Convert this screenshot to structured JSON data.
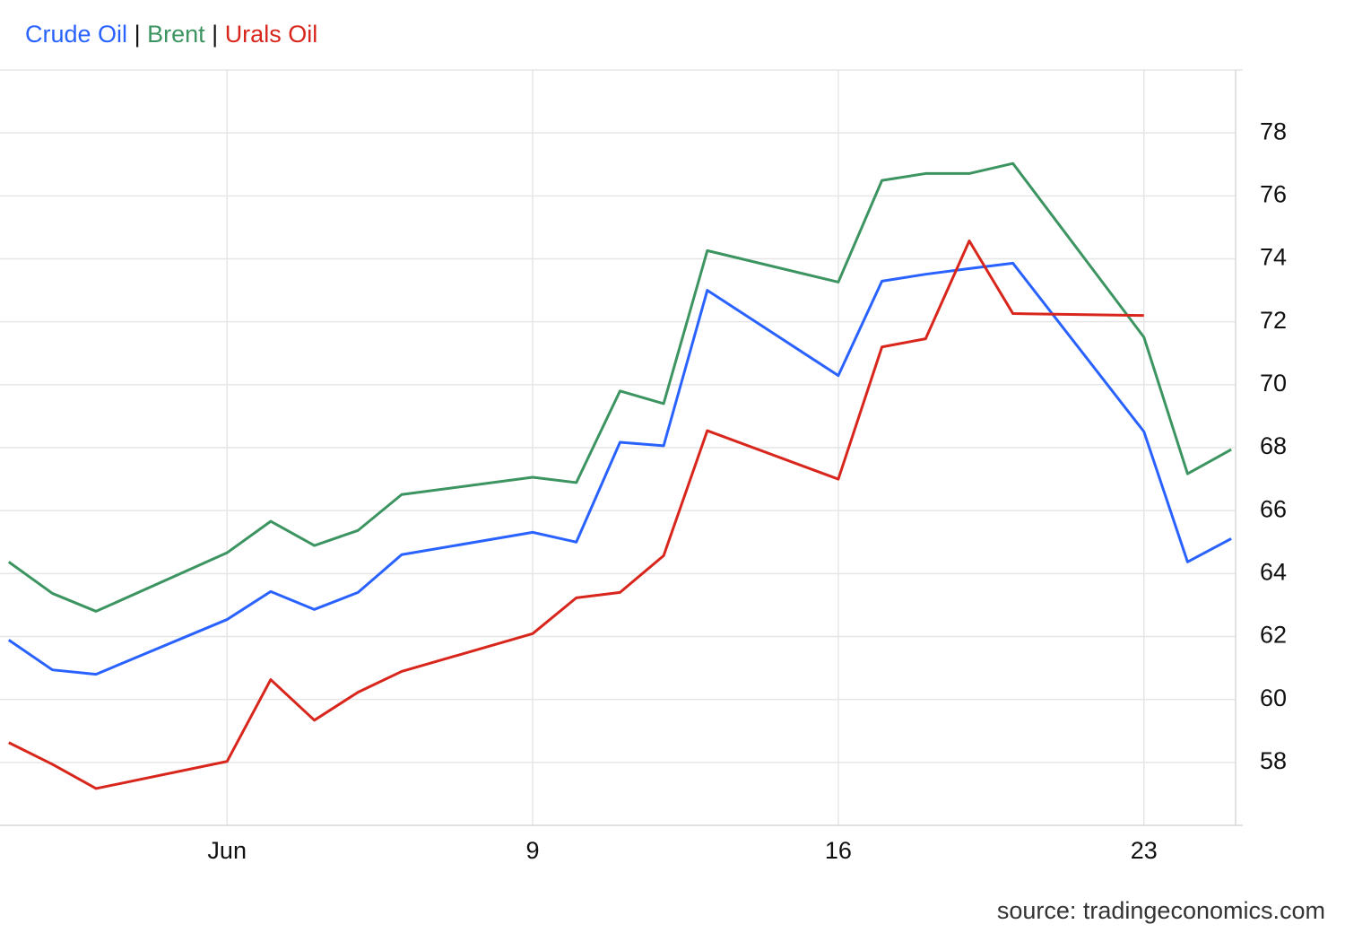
{
  "chart_data": {
    "type": "line",
    "legend_separator": "|",
    "source": "source: tradingeconomics.com",
    "x": [
      -3,
      -2,
      -1,
      2,
      3,
      4,
      5,
      6,
      9,
      10,
      11,
      12,
      13,
      16,
      17,
      18,
      19,
      20,
      23,
      24,
      25
    ],
    "xlim": [
      -3.2,
      25.1
    ],
    "xticks": [
      {
        "value": 2,
        "label": "Jun"
      },
      9,
      16,
      23
    ],
    "ylim": [
      56,
      80
    ],
    "yticks": [
      58,
      60,
      62,
      64,
      66,
      68,
      70,
      72,
      74,
      76,
      78
    ],
    "grid": true,
    "series": [
      {
        "name": "Crude Oil",
        "color": "#2962ff",
        "values": [
          61.89,
          60.94,
          60.8,
          62.54,
          63.43,
          62.86,
          63.4,
          64.6,
          65.31,
          65.0,
          68.17,
          68.06,
          73.0,
          70.29,
          73.29,
          73.51,
          73.69,
          73.86,
          68.51,
          64.37,
          65.11
        ]
      },
      {
        "name": "Brent",
        "color": "#3c9461",
        "values": [
          64.37,
          63.37,
          62.8,
          64.66,
          65.66,
          64.89,
          65.37,
          66.51,
          67.06,
          66.89,
          69.8,
          69.4,
          74.26,
          73.26,
          76.49,
          76.71,
          76.71,
          77.03,
          71.51,
          67.17,
          67.94
        ]
      },
      {
        "name": "Urals Oil",
        "color": "#d8261c",
        "values": [
          58.63,
          57.94,
          57.17,
          58.03,
          60.63,
          59.34,
          60.23,
          60.89,
          62.09,
          63.23,
          63.4,
          64.57,
          68.54,
          67.0,
          71.2,
          71.46,
          74.57,
          72.26,
          72.2,
          null,
          null
        ]
      }
    ]
  }
}
